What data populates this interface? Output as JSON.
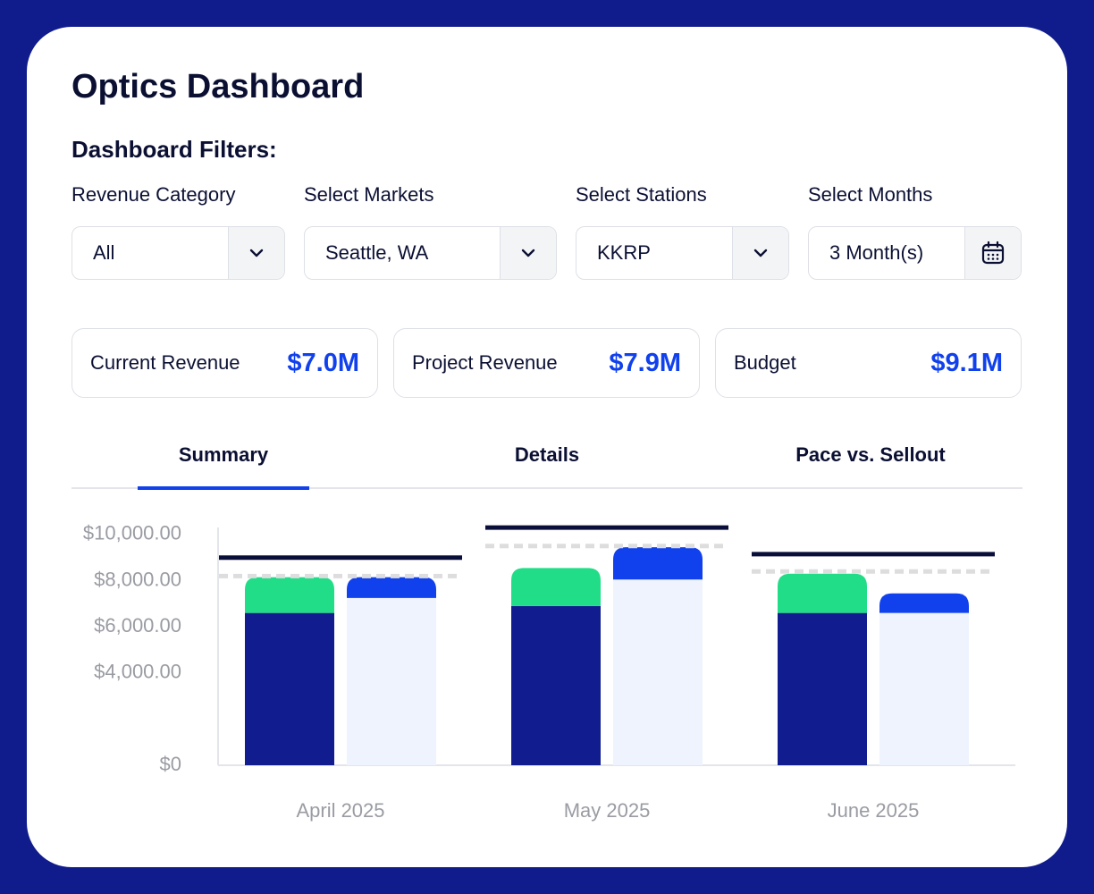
{
  "header": {
    "title": "Optics Dashboard",
    "filters_title": "Dashboard Filters:"
  },
  "filters": [
    {
      "label": "Revenue Category",
      "value": "All"
    },
    {
      "label": "Select Markets",
      "value": "Seattle, WA"
    },
    {
      "label": "Select Stations",
      "value": "KKRP"
    },
    {
      "label": "Select Months",
      "value": "3 Month(s)"
    }
  ],
  "kpis": [
    {
      "label": "Current Revenue",
      "value": "$7.0M"
    },
    {
      "label": "Project Revenue",
      "value": "$7.9M"
    },
    {
      "label": "Budget",
      "value": "$9.1M"
    }
  ],
  "tabs": [
    "Summary",
    "Details",
    "Pace vs. Sellout"
  ],
  "active_tab": 0,
  "chart_data": {
    "type": "stacked_bar",
    "categories": [
      "April 2025",
      "May 2025",
      "June 2025"
    ],
    "series": [
      {
        "color": "#111c8f",
        "stack": 0,
        "values": [
          6600,
          6900,
          6600
        ]
      },
      {
        "color": "#22dd88",
        "stack": 0,
        "values": [
          1550,
          1650,
          1700
        ]
      },
      {
        "color": "#eef3fd",
        "stack": 1,
        "values": [
          7250,
          8050,
          6600
        ]
      },
      {
        "color": "#1141ec",
        "stack": 1,
        "values": [
          900,
          1400,
          850
        ]
      }
    ],
    "lines": [
      {
        "color": "#0a0f3a",
        "dashed": false,
        "values": [
          9000,
          10300,
          9150
        ]
      },
      {
        "color": "#dddddd",
        "dashed": true,
        "values": [
          8200,
          9500,
          8400
        ]
      }
    ],
    "ylim": [
      0,
      10500
    ],
    "yticks": [
      {
        "value": 0,
        "label": "$0"
      },
      {
        "value": 4000,
        "label": "$4,000.00"
      },
      {
        "value": 6000,
        "label": "$6,000.00"
      },
      {
        "value": 8000,
        "label": "$8,000.00"
      },
      {
        "value": 10000,
        "label": "$10,000.00"
      }
    ]
  }
}
